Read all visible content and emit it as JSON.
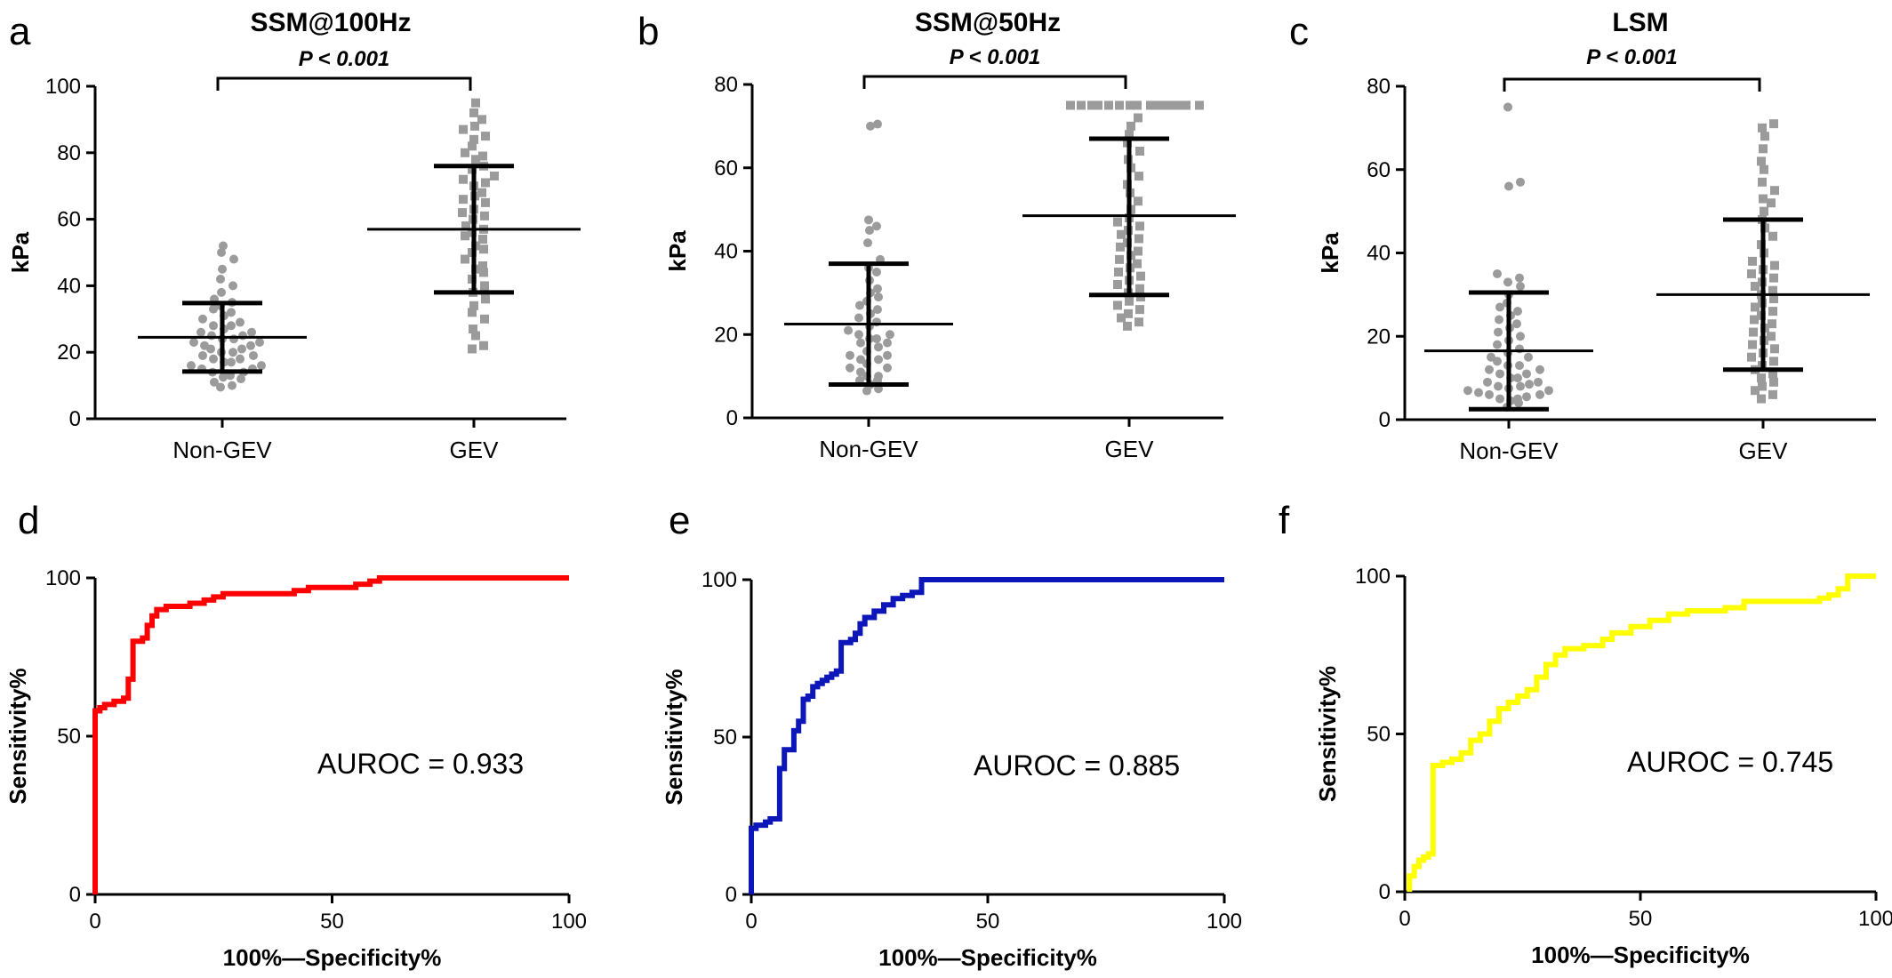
{
  "chart_data": [
    {
      "panel": "a",
      "type": "scatter",
      "title": "SSM@100Hz",
      "ylabel": "kPa",
      "xlabel": "",
      "ylim": [
        0,
        100
      ],
      "yticks": [
        0,
        20,
        40,
        60,
        80,
        100
      ],
      "categories": [
        "Non-GEV",
        "GEV"
      ],
      "significance": "P < 0.001",
      "groups": [
        {
          "category": "Non-GEV",
          "marker": "circle",
          "mean": 24.5,
          "sd_low": 14.2,
          "sd_high": 34.8,
          "values": [
            9.5,
            10,
            11,
            12,
            12.5,
            13,
            14,
            14,
            15,
            15,
            16,
            16,
            17,
            17,
            18,
            18,
            19,
            19,
            20,
            20,
            21,
            21,
            22,
            22,
            23,
            23,
            24,
            24,
            25,
            25,
            26,
            26,
            27,
            28,
            28,
            29,
            30,
            31,
            32,
            33,
            34,
            35,
            36,
            38,
            40,
            42,
            45,
            48,
            50,
            52
          ]
        },
        {
          "category": "GEV",
          "marker": "square",
          "mean": 57,
          "sd_low": 38,
          "sd_high": 76,
          "values": [
            21,
            22,
            25,
            27,
            30,
            32,
            34,
            36,
            38,
            40,
            42,
            44,
            45,
            46,
            48,
            50,
            51,
            52,
            54,
            55,
            56,
            57,
            58,
            60,
            61,
            62,
            63,
            65,
            66,
            67,
            68,
            70,
            71,
            72,
            73,
            75,
            76,
            78,
            79,
            80,
            82,
            84,
            85,
            87,
            88,
            90,
            92,
            95
          ]
        }
      ]
    },
    {
      "panel": "b",
      "type": "scatter",
      "title": "SSM@50Hz",
      "ylabel": "kPa",
      "xlabel": "",
      "ylim": [
        0,
        80
      ],
      "yticks": [
        0,
        20,
        40,
        60,
        80
      ],
      "categories": [
        "Non-GEV",
        "GEV"
      ],
      "significance": "P < 0.001",
      "groups": [
        {
          "category": "Non-GEV",
          "marker": "circle",
          "mean": 22.5,
          "sd_low": 8,
          "sd_high": 37,
          "values": [
            6.5,
            7,
            8,
            9,
            9,
            10,
            10,
            11,
            12,
            12,
            13,
            14,
            14,
            15,
            15,
            16,
            17,
            18,
            18,
            19,
            19,
            20,
            20,
            21,
            22,
            23,
            24,
            25,
            26,
            27,
            28,
            29,
            30,
            31,
            33,
            35,
            36,
            38,
            42,
            45,
            46,
            47.5,
            70,
            70.5
          ]
        },
        {
          "category": "GEV",
          "marker": "square",
          "mean": 48.5,
          "sd_low": 29.5,
          "sd_high": 67,
          "values": [
            22,
            23,
            24,
            25,
            26,
            27,
            28,
            29,
            30,
            31,
            32,
            33,
            34,
            35,
            36,
            37,
            38,
            39,
            40,
            41,
            42,
            43,
            44,
            45,
            46,
            47,
            48,
            50,
            52,
            54,
            56,
            58,
            60,
            62,
            64,
            66,
            68,
            70,
            72,
            75,
            75,
            75,
            75,
            75,
            75,
            75,
            75,
            75,
            75,
            75,
            75,
            75,
            75
          ]
        }
      ]
    },
    {
      "panel": "c",
      "type": "scatter",
      "title": "LSM",
      "ylabel": "kPa",
      "xlabel": "",
      "ylim": [
        0,
        80
      ],
      "yticks": [
        0,
        20,
        40,
        60,
        80
      ],
      "categories": [
        "Non-GEV",
        "GEV"
      ],
      "significance": "P < 0.001",
      "groups": [
        {
          "category": "Non-GEV",
          "marker": "circle",
          "mean": 16.5,
          "sd_low": 2.5,
          "sd_high": 30.5,
          "values": [
            3,
            4,
            4.5,
            5,
            5,
            5.5,
            6,
            6,
            6.5,
            7,
            7,
            7.5,
            8,
            8,
            8.5,
            9,
            9,
            10,
            10,
            11,
            11,
            12,
            12,
            13,
            13,
            14,
            15,
            15,
            16,
            17,
            18,
            19,
            20,
            21,
            22,
            23,
            24,
            25,
            26,
            27,
            28,
            30,
            32,
            33,
            34,
            35,
            56,
            57,
            75
          ]
        },
        {
          "category": "GEV",
          "marker": "square",
          "mean": 30,
          "sd_low": 12,
          "sd_high": 48,
          "values": [
            5,
            6,
            7,
            8,
            9,
            10,
            11,
            12,
            13,
            14,
            15,
            16,
            17,
            18,
            19,
            20,
            21,
            22,
            23,
            24,
            25,
            26,
            27,
            28,
            29,
            30,
            31,
            32,
            33,
            34,
            35,
            36,
            37,
            38,
            40,
            42,
            44,
            46,
            48,
            50,
            52,
            53,
            55,
            57,
            60,
            62,
            65,
            68,
            70,
            71
          ]
        }
      ]
    },
    {
      "panel": "d",
      "type": "line",
      "title": "",
      "ylabel": "Sensitivity%",
      "xlabel": "100%—Specificity%",
      "xlim": [
        0,
        100
      ],
      "ylim": [
        0,
        100
      ],
      "xticks": [
        0,
        50,
        100
      ],
      "yticks": [
        0,
        50,
        100
      ],
      "annotation": "AUROC = 0.933",
      "color": "#ff0000",
      "x": [
        0,
        0,
        0,
        1,
        1,
        2,
        2,
        4,
        4,
        6,
        6,
        7,
        7,
        8,
        8,
        10,
        10,
        11,
        11,
        12,
        12,
        13,
        13,
        15,
        15,
        20,
        20,
        23,
        23,
        25,
        25,
        27,
        27,
        30,
        30,
        42,
        42,
        45,
        45,
        55,
        55,
        58,
        58,
        60,
        60,
        100
      ],
      "y": [
        0,
        56,
        58,
        58,
        59,
        59,
        60,
        60,
        61,
        61,
        62,
        62,
        68,
        68,
        80,
        80,
        81,
        81,
        85,
        85,
        88,
        88,
        90,
        90,
        91,
        91,
        92,
        92,
        93,
        93,
        94,
        94,
        95,
        95,
        95,
        95,
        96,
        96,
        97,
        97,
        98,
        98,
        99,
        99,
        100,
        100
      ]
    },
    {
      "panel": "e",
      "type": "line",
      "title": "",
      "ylabel": "Sensitivity%",
      "xlabel": "100%—Specificity%",
      "xlim": [
        0,
        100
      ],
      "ylim": [
        0,
        100
      ],
      "xticks": [
        0,
        50,
        100
      ],
      "yticks": [
        0,
        50,
        100
      ],
      "annotation": "AUROC = 0.885",
      "color": "#0d16b8",
      "x": [
        0,
        0,
        1,
        1,
        3,
        3,
        4,
        4,
        6,
        6,
        7,
        7,
        9,
        9,
        10,
        10,
        11,
        11,
        12,
        12,
        13,
        13,
        14,
        14,
        15,
        15,
        16,
        16,
        17,
        17,
        18,
        18,
        19,
        19,
        21,
        21,
        22,
        22,
        23,
        23,
        24,
        24,
        26,
        26,
        28,
        28,
        30,
        30,
        32,
        32,
        34,
        34,
        36,
        36,
        100
      ],
      "y": [
        0,
        21,
        21,
        22,
        22,
        23,
        23,
        24,
        24,
        40,
        40,
        46,
        46,
        52,
        52,
        55,
        55,
        62,
        62,
        63,
        63,
        66,
        66,
        67,
        67,
        68,
        68,
        69,
        69,
        70,
        70,
        71,
        71,
        80,
        80,
        81,
        81,
        83,
        83,
        86,
        86,
        88,
        88,
        90,
        90,
        92,
        92,
        94,
        94,
        95,
        95,
        96,
        96,
        100,
        100
      ]
    },
    {
      "panel": "f",
      "type": "line",
      "title": "",
      "ylabel": "Sensitivity%",
      "xlabel": "100%—Specificity%",
      "xlim": [
        0,
        100
      ],
      "ylim": [
        0,
        100
      ],
      "xticks": [
        0,
        50,
        100
      ],
      "yticks": [
        0,
        50,
        100
      ],
      "annotation": "AUROC = 0.745",
      "color": "#ffff00",
      "x": [
        1,
        1,
        2,
        2,
        3,
        3,
        4,
        4,
        5,
        5,
        6,
        6,
        8,
        8,
        10,
        10,
        12,
        12,
        14,
        14,
        16,
        16,
        18,
        18,
        20,
        20,
        22,
        22,
        24,
        24,
        26,
        26,
        28,
        28,
        30,
        30,
        32,
        32,
        34,
        34,
        38,
        38,
        42,
        42,
        44,
        44,
        48,
        48,
        52,
        52,
        56,
        56,
        60,
        60,
        68,
        68,
        72,
        72,
        88,
        88,
        90,
        90,
        92,
        92,
        94,
        94,
        100
      ],
      "y": [
        0,
        5,
        5,
        8,
        8,
        10,
        10,
        11,
        11,
        12,
        12,
        40,
        40,
        41,
        41,
        42,
        42,
        44,
        44,
        48,
        48,
        50,
        50,
        54,
        54,
        58,
        58,
        60,
        60,
        62,
        62,
        64,
        64,
        68,
        68,
        72,
        72,
        75,
        75,
        77,
        77,
        78,
        78,
        80,
        80,
        82,
        82,
        84,
        84,
        86,
        86,
        88,
        88,
        89,
        89,
        90,
        90,
        92,
        92,
        93,
        93,
        94,
        94,
        96,
        96,
        100,
        100
      ]
    }
  ]
}
